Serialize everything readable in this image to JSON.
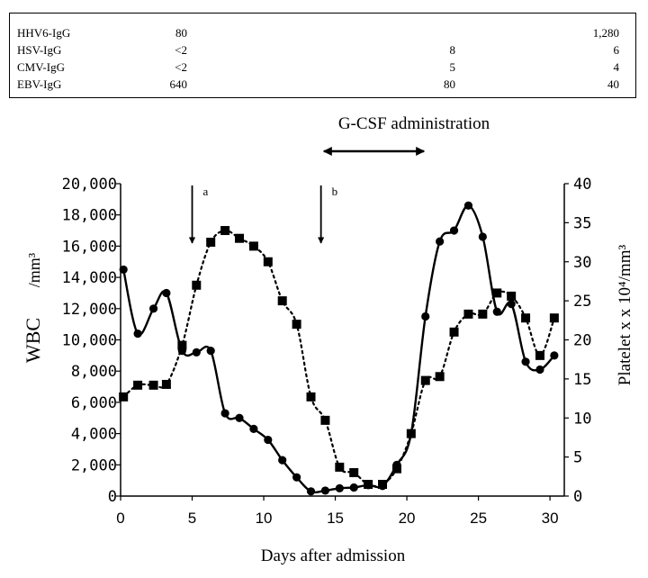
{
  "titer_table": {
    "rows": [
      {
        "name": "HHV6-IgG",
        "v1": "80",
        "v2": "",
        "v3": "1,280"
      },
      {
        "name": "HSV-IgG",
        "v1": "<2",
        "v2": "8",
        "v3": "6"
      },
      {
        "name": "CMV-IgG",
        "v1": "<2",
        "v2": "5",
        "v3": "4"
      },
      {
        "name": "EBV-IgG",
        "v1": "640",
        "v2": "80",
        "v3": "40"
      }
    ]
  },
  "annotations": {
    "gcsf": "G-CSF administration",
    "gcsf_range": [
      14.2,
      21.2
    ],
    "arrow_a_label": "a",
    "arrow_a_day": 5,
    "arrow_b_label": "b",
    "arrow_b_day": 14
  },
  "chart_data": {
    "type": "line",
    "xlabel": "Days after admission",
    "ylabel_left": "WBC",
    "ylabel_left_unit": "/mm³",
    "ylabel_right": "Platelet x  x 10⁴/mm³",
    "xlim": [
      0,
      31
    ],
    "xticks": [
      0,
      5,
      10,
      15,
      20,
      25,
      30
    ],
    "ylim_left": [
      0,
      20000
    ],
    "yticks_left": [
      0,
      2000,
      4000,
      6000,
      8000,
      10000,
      12000,
      14000,
      16000,
      18000,
      20000
    ],
    "ytick_labels_left": [
      "0",
      "2,000",
      "4,000",
      "6,000",
      "8,000",
      "10,000",
      "12,000",
      "14,000",
      "16,000",
      "18,000",
      "20,000"
    ],
    "ylim_right": [
      0,
      40
    ],
    "yticks_right": [
      0,
      5,
      10,
      15,
      20,
      25,
      30,
      35,
      40
    ],
    "ytick_labels_right": [
      "0",
      "5",
      "10",
      "15",
      "20",
      "25",
      "30",
      "35",
      "40"
    ],
    "series": [
      {
        "name": "WBC",
        "axis": "left",
        "marker": "circle",
        "line": "solid",
        "x": [
          0.2,
          1.2,
          2.3,
          3.2,
          4.3,
          5.3,
          6.3,
          7.3,
          8.3,
          9.3,
          10.3,
          11.3,
          12.3,
          13.3,
          14.3,
          15.3,
          16.3,
          17.3,
          18.3,
          19.3,
          20.3,
          21.3,
          22.3,
          23.3,
          24.3,
          25.3,
          26.3,
          27.3,
          28.3,
          29.3,
          30.3
        ],
        "y": [
          14500,
          10400,
          12000,
          13000,
          9300,
          9200,
          9300,
          5300,
          5000,
          4300,
          3600,
          2300,
          1200,
          300,
          350,
          500,
          550,
          700,
          650,
          2000,
          4000,
          11500,
          16300,
          17000,
          18600,
          16600,
          11800,
          12300,
          8600,
          8100,
          9000
        ]
      },
      {
        "name": "Platelet",
        "axis": "right",
        "marker": "square",
        "line": "dotted",
        "x": [
          0.2,
          1.2,
          2.3,
          3.2,
          4.3,
          5.3,
          6.3,
          7.3,
          8.3,
          9.3,
          10.3,
          11.3,
          12.3,
          13.3,
          14.3,
          15.3,
          16.3,
          17.3,
          18.3,
          19.3,
          20.3,
          21.3,
          22.3,
          23.3,
          24.3,
          25.3,
          26.3,
          27.3,
          28.3,
          29.3,
          30.3
        ],
        "y": [
          12.7,
          14.2,
          14.2,
          14.3,
          19.3,
          27.0,
          32.5,
          34.0,
          33.0,
          32.0,
          30.0,
          25.0,
          22.0,
          12.7,
          9.7,
          3.7,
          3.0,
          1.5,
          1.5,
          3.5,
          8.0,
          14.8,
          15.3,
          21.0,
          23.3,
          23.3,
          26.0,
          25.6,
          22.8,
          18.0,
          22.8
        ]
      }
    ]
  }
}
